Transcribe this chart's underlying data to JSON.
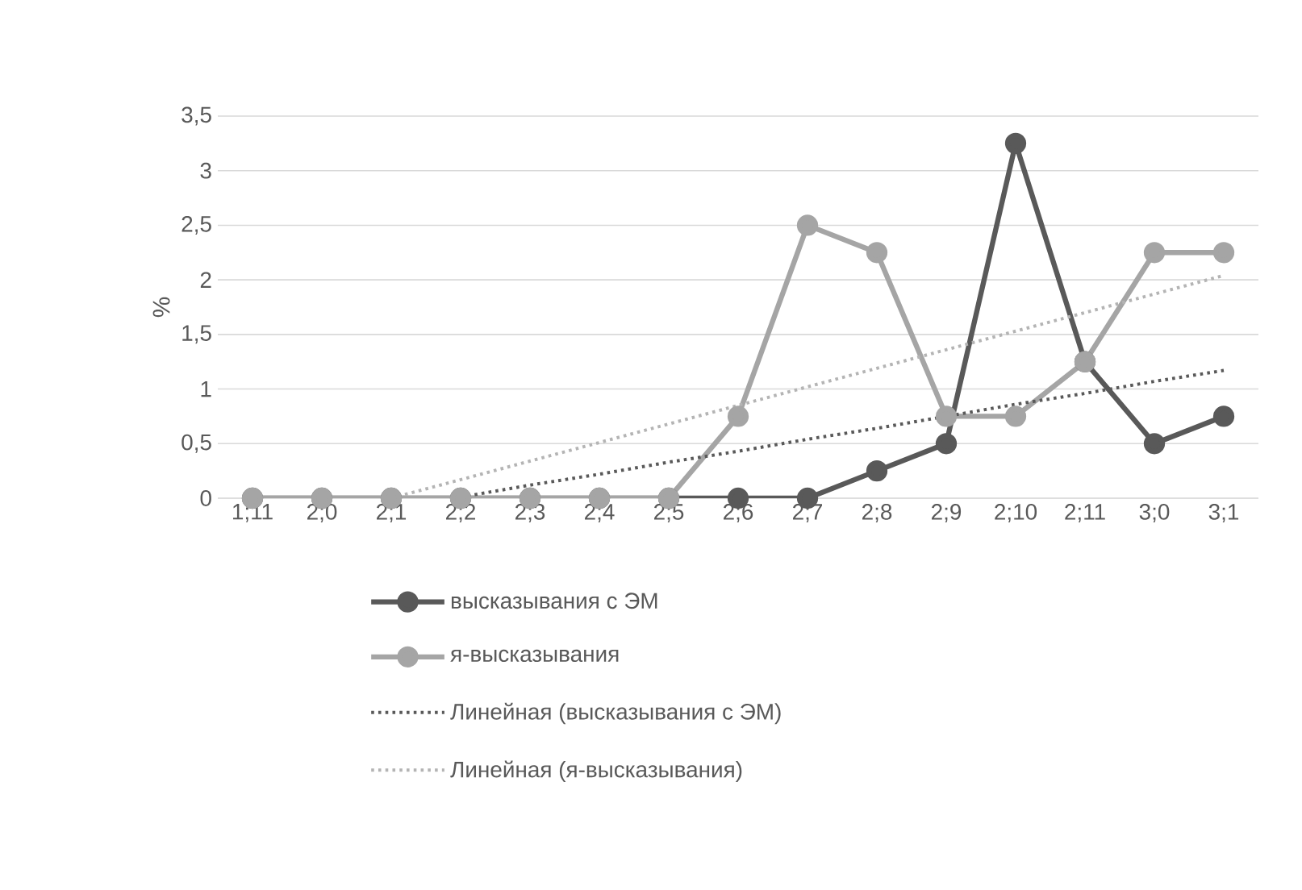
{
  "chart_data": {
    "type": "line",
    "ylabel": "%",
    "categories": [
      "1;11",
      "2;0",
      "2;1",
      "2;2",
      "2;3",
      "2;4",
      "2;5",
      "2;6",
      "2;7",
      "2;8",
      "2;9",
      "2;10",
      "2;11",
      "3;0",
      "3;1"
    ],
    "series": [
      {
        "name": "высказывания с ЭМ",
        "color": "#595959",
        "values": [
          0,
          0,
          0,
          0,
          0,
          0,
          0,
          0,
          0,
          0.25,
          0.5,
          3.25,
          1.25,
          0.5,
          0.75
        ]
      },
      {
        "name": "я-высказывания",
        "color": "#a5a5a5",
        "values": [
          0,
          0,
          0,
          0,
          0,
          0,
          0,
          0.75,
          2.5,
          2.25,
          0.75,
          0.75,
          1.25,
          2.25,
          2.25
        ]
      },
      {
        "name": "Линейная (высказывания с ЭМ)",
        "type": "line",
        "color": "#595959",
        "values": [
          null,
          null,
          null,
          0.01,
          0.12,
          0.22,
          0.33,
          0.43,
          0.54,
          0.64,
          0.75,
          0.86,
          0.96,
          1.07,
          1.17
        ],
        "line_style": "dotted",
        "marker": "none"
      },
      {
        "name": "Линейная (я-высказывания)",
        "type": "line",
        "color": "#b4b4b4",
        "values": [
          null,
          null,
          0,
          0.17,
          0.34,
          0.51,
          0.68,
          0.85,
          1.02,
          1.19,
          1.36,
          1.53,
          1.7,
          1.87,
          2.04
        ],
        "line_style": "dotted",
        "marker": "none"
      }
    ],
    "ylim": [
      0,
      3.5
    ],
    "yticks": [
      0,
      {
        "value": 0.5,
        "label": "0,5"
      },
      1,
      {
        "value": 1.5,
        "label": "1,5"
      },
      2,
      {
        "value": 2.5,
        "label": "2,5"
      },
      3,
      {
        "value": 3.5,
        "label": "3,5"
      }
    ],
    "grid": "y",
    "legend": "bottom",
    "marker": "circle",
    "line_style": "solid"
  }
}
